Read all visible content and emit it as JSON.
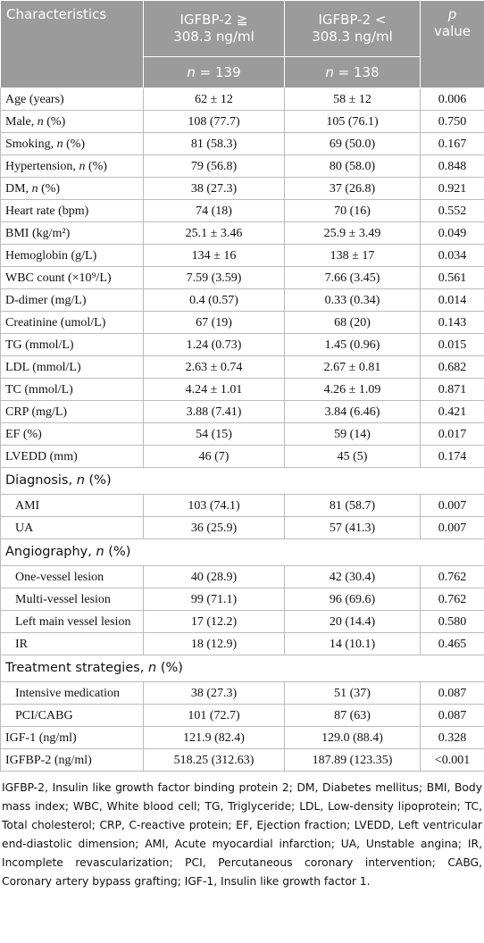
{
  "header": {
    "characteristics": "Characteristics",
    "group_high": "IGFBP-2 ≧ 308.3 ng/ml",
    "group_low": "IGFBP-2 < 308.3 ng/ml",
    "p_value": "p value",
    "n_high": "n = 139",
    "n_low": "n = 138"
  },
  "rows": [
    [
      "Age (years)",
      "62 ± 12",
      "58 ± 12",
      "0.006"
    ],
    [
      "Male, n (%)",
      "108 (77.7)",
      "105 (76.1)",
      "0.750"
    ],
    [
      "Smoking, n (%)",
      "81 (58.3)",
      "69 (50.0)",
      "0.167"
    ],
    [
      "Hypertension, n (%)",
      "79 (56.8)",
      "80 (58.0)",
      "0.848"
    ],
    [
      "DM, n (%)",
      "38 (27.3)",
      "37 (26.8)",
      "0.921"
    ],
    [
      "Heart rate (bpm)",
      "74 (18)",
      "70 (16)",
      "0.552"
    ],
    [
      "BMI (kg/m²)",
      "25.1 ± 3.46",
      "25.9 ± 3.49",
      "0.049"
    ],
    [
      "Hemoglobin (g/L)",
      "134 ± 16",
      "138 ± 17",
      "0.034"
    ],
    [
      "WBC count (×10⁹/L)",
      "7.59 (3.59)",
      "7.66 (3.45)",
      "0.561"
    ],
    [
      "D-dimer (mg/L)",
      "0.4 (0.57)",
      "0.33 (0.34)",
      "0.014"
    ],
    [
      "Creatinine (umol/L)",
      "67 (19)",
      "68 (20)",
      "0.143"
    ],
    [
      "TG (mmol/L)",
      "1.24 (0.73)",
      "1.45 (0.96)",
      "0.015"
    ],
    [
      "LDL (mmol/L)",
      "2.63 ± 0.74",
      "2.67 ± 0.81",
      "0.682"
    ],
    [
      "TC (mmol/L)",
      "4.24 ± 1.01",
      "4.26 ± 1.09",
      "0.871"
    ],
    [
      "CRP (mg/L)",
      "3.88 (7.41)",
      "3.84 (6.46)",
      "0.421"
    ],
    [
      "EF (%)",
      "54 (15)",
      "59 (14)",
      "0.017"
    ],
    [
      "LVEDD (mm)",
      "46 (7)",
      "45 (5)",
      "0.174"
    ]
  ],
  "sections": [
    {
      "title": "Diagnosis, n (%)",
      "rows": [
        [
          "AMI",
          "103 (74.1)",
          "81 (58.7)",
          "0.007"
        ],
        [
          "UA",
          "36 (25.9)",
          "57 (41.3)",
          "0.007"
        ]
      ]
    },
    {
      "title": "Angiography, n (%)",
      "rows": [
        [
          "One-vessel lesion",
          "40 (28.9)",
          "42 (30.4)",
          "0.762"
        ],
        [
          "Multi-vessel lesion",
          "99 (71.1)",
          "96 (69.6)",
          "0.762"
        ],
        [
          "Left main vessel lesion",
          "17 (12.2)",
          "20 (14.4)",
          "0.580"
        ],
        [
          "IR",
          "18 (12.9)",
          "14 (10.1)",
          "0.465"
        ]
      ]
    },
    {
      "title": "Treatment strategies, n (%)",
      "rows": [
        [
          "Intensive medication",
          "38 (27.3)",
          "51 (37)",
          "0.087"
        ],
        [
          "PCI/CABG",
          "101 (72.7)",
          "87 (63)",
          "0.087"
        ]
      ]
    }
  ],
  "tail_rows": [
    [
      "IGF-1 (ng/ml)",
      "121.9 (82.4)",
      "129.0 (88.4)",
      "0.328"
    ],
    [
      "IGFBP-2 (ng/ml)",
      "518.25 (312.63)",
      "187.89 (123.35)",
      "<0.001"
    ]
  ],
  "footnote": "IGFBP-2, Insulin like growth factor binding protein 2; DM, Diabetes mellitus; BMI, Body mass index; WBC, White blood cell; TG, Triglyceride; LDL, Low-density lipoprotein; TC, Total cholesterol; CRP, C-reactive protein; EF, Ejection fraction; LVEDD, Left ventricular end-diastolic dimension; AMI, Acute myocardial infarction; UA, Unstable angina; IR, Incomplete revascularization; PCI, Percutaneous coronary intervention; CABG, Coronary artery bypass grafting; IGF-1, Insulin like growth factor 1."
}
